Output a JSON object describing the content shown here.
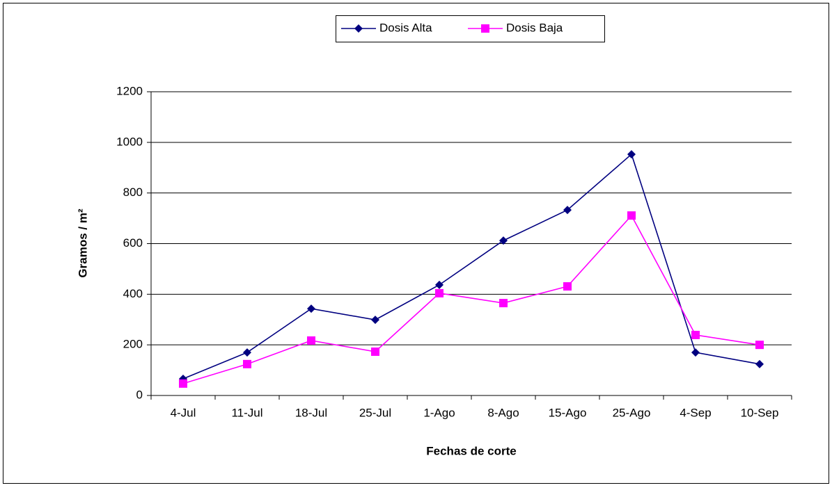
{
  "chart_data": {
    "type": "line",
    "xlabel": "Fechas de corte",
    "ylabel": "Gramos / m²",
    "categories": [
      "4-Jul",
      "11-Jul",
      "18-Jul",
      "25-Jul",
      "1-Ago",
      "8-Ago",
      "15-Ago",
      "25-Ago",
      "4-Sep",
      "10-Sep"
    ],
    "series": [
      {
        "name": "Dosis Alta",
        "color": "#000080",
        "marker": "diamond",
        "values": [
          66,
          170,
          343,
          299,
          437,
          612,
          733,
          953,
          170,
          124
        ]
      },
      {
        "name": "Dosis Baja",
        "color": "#ff00ff",
        "marker": "square",
        "values": [
          47,
          124,
          217,
          173,
          404,
          365,
          431,
          711,
          239,
          200
        ]
      }
    ],
    "ylim": [
      0,
      1200
    ],
    "yticks": [
      0,
      200,
      400,
      600,
      800,
      1000,
      1200
    ],
    "grid": true,
    "legend": "top"
  }
}
